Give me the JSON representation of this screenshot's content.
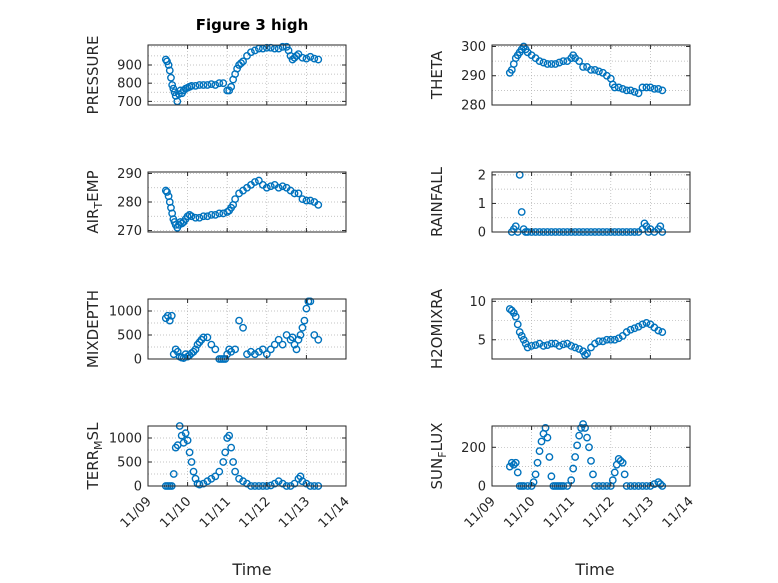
{
  "figure": {
    "title": "Figure 3 high"
  },
  "colors": {
    "series": "#0072BD",
    "axis": "#262626"
  },
  "chart_data": [
    {
      "type": "scatter",
      "ylabel": "PRESSURE",
      "ylabel_sub": "",
      "ylabel_tail": "",
      "title": "Figure 3 high",
      "xlim": [
        0,
        5
      ],
      "ylim": [
        680,
        1010
      ],
      "yticks": [
        700,
        800,
        900
      ],
      "grid": true,
      "x": [
        0.45,
        0.48,
        0.52,
        0.55,
        0.58,
        0.61,
        0.64,
        0.67,
        0.7,
        0.74,
        0.78,
        0.82,
        0.86,
        0.9,
        0.95,
        1.0,
        1.05,
        1.1,
        1.2,
        1.3,
        1.4,
        1.5,
        1.6,
        1.7,
        1.8,
        1.9,
        2.0,
        2.05,
        2.1,
        2.15,
        2.2,
        2.25,
        2.3,
        2.35,
        2.4,
        2.5,
        2.6,
        2.7,
        2.8,
        2.9,
        3.0,
        3.1,
        3.2,
        3.3,
        3.4,
        3.5,
        3.55,
        3.6,
        3.65,
        3.7,
        3.75,
        3.8,
        3.9,
        4.0,
        4.1,
        4.2,
        4.3
      ],
      "y": [
        930,
        920,
        900,
        870,
        830,
        790,
        770,
        750,
        730,
        700,
        740,
        760,
        745,
        760,
        770,
        775,
        780,
        785,
        785,
        790,
        790,
        790,
        795,
        790,
        800,
        800,
        760,
        760,
        780,
        820,
        850,
        880,
        900,
        910,
        920,
        950,
        970,
        980,
        990,
        990,
        995,
        995,
        990,
        990,
        1000,
        1000,
        980,
        950,
        930,
        940,
        950,
        960,
        940,
        935,
        945,
        935,
        930
      ]
    },
    {
      "type": "scatter",
      "ylabel": "THETA",
      "ylabel_sub": "",
      "ylabel_tail": "",
      "xlim": [
        0,
        5
      ],
      "ylim": [
        280,
        300.5
      ],
      "yticks": [
        280,
        290,
        300
      ],
      "grid": true,
      "x": [
        0.45,
        0.5,
        0.55,
        0.6,
        0.65,
        0.7,
        0.75,
        0.8,
        0.85,
        0.9,
        1.0,
        1.1,
        1.2,
        1.3,
        1.4,
        1.5,
        1.6,
        1.7,
        1.8,
        1.9,
        2.0,
        2.05,
        2.1,
        2.2,
        2.3,
        2.4,
        2.5,
        2.6,
        2.7,
        2.8,
        2.9,
        3.0,
        3.05,
        3.1,
        3.2,
        3.3,
        3.4,
        3.5,
        3.6,
        3.7,
        3.8,
        3.9,
        4.0,
        4.1,
        4.2,
        4.3
      ],
      "y": [
        291,
        292,
        294,
        296,
        297,
        298,
        299,
        300,
        299,
        298,
        297,
        296,
        295,
        294.5,
        294,
        294,
        294,
        294.5,
        295,
        295,
        296,
        297,
        296,
        295,
        293,
        293,
        292,
        292,
        291.5,
        291,
        290,
        289,
        287,
        286,
        286,
        285.5,
        285,
        285,
        284.5,
        284,
        286,
        286,
        286,
        285.5,
        285.5,
        285
      ]
    },
    {
      "type": "scatter",
      "ylabel": "AIR",
      "ylabel_sub": "T",
      "ylabel_tail": "EMP",
      "xlim": [
        0,
        5
      ],
      "ylim": [
        269.5,
        290.5
      ],
      "yticks": [
        270,
        280,
        290
      ],
      "grid": true,
      "x": [
        0.45,
        0.48,
        0.52,
        0.55,
        0.58,
        0.61,
        0.64,
        0.67,
        0.7,
        0.74,
        0.78,
        0.82,
        0.86,
        0.9,
        0.95,
        1.0,
        1.05,
        1.1,
        1.2,
        1.3,
        1.4,
        1.5,
        1.6,
        1.7,
        1.8,
        1.9,
        2.0,
        2.05,
        2.1,
        2.15,
        2.2,
        2.3,
        2.4,
        2.5,
        2.6,
        2.7,
        2.8,
        2.9,
        3.0,
        3.1,
        3.2,
        3.3,
        3.4,
        3.5,
        3.6,
        3.7,
        3.8,
        3.9,
        4.0,
        4.1,
        4.2,
        4.3
      ],
      "y": [
        284,
        283.5,
        282,
        280,
        278,
        276,
        274,
        273,
        272,
        271,
        272,
        273,
        272.5,
        273,
        274,
        275,
        275.5,
        275,
        274.5,
        274.5,
        275,
        275,
        275.5,
        275.5,
        276,
        276,
        276.5,
        277,
        278,
        279,
        281,
        283,
        284,
        285,
        286,
        287,
        287.5,
        286,
        285,
        285.5,
        286,
        285,
        285.5,
        285,
        284,
        283,
        283,
        281,
        280.5,
        280.5,
        280,
        279
      ]
    },
    {
      "type": "scatter",
      "ylabel": "RAINFALL",
      "ylabel_sub": "",
      "ylabel_tail": "",
      "xlim": [
        0,
        5
      ],
      "ylim": [
        0,
        2.1
      ],
      "yticks": [
        0,
        1,
        2
      ],
      "grid": true,
      "x": [
        0.5,
        0.55,
        0.6,
        0.65,
        0.7,
        0.75,
        0.8,
        0.85,
        0.9,
        1.0,
        1.1,
        1.2,
        1.3,
        1.4,
        1.5,
        1.6,
        1.7,
        1.8,
        1.9,
        2.0,
        2.1,
        2.2,
        2.3,
        2.4,
        2.5,
        2.6,
        2.7,
        2.8,
        2.9,
        3.0,
        3.1,
        3.2,
        3.3,
        3.4,
        3.5,
        3.6,
        3.7,
        3.8,
        3.85,
        3.9,
        3.95,
        4.0,
        4.1,
        4.2,
        4.25,
        4.3
      ],
      "y": [
        0,
        0.1,
        0.2,
        0,
        2.0,
        0.7,
        0.1,
        0,
        0,
        0,
        0,
        0,
        0,
        0,
        0,
        0,
        0,
        0,
        0,
        0,
        0,
        0,
        0,
        0,
        0,
        0,
        0,
        0,
        0,
        0,
        0,
        0,
        0,
        0,
        0,
        0,
        0,
        0.1,
        0.3,
        0.2,
        0,
        0.1,
        0,
        0.1,
        0.2,
        0
      ]
    },
    {
      "type": "scatter",
      "ylabel": "MIXDEPTH",
      "ylabel_sub": "",
      "ylabel_tail": "",
      "xlim": [
        0,
        5
      ],
      "ylim": [
        0,
        1250
      ],
      "yticks": [
        0,
        500,
        1000
      ],
      "grid": true,
      "x": [
        0.45,
        0.5,
        0.55,
        0.6,
        0.65,
        0.7,
        0.75,
        0.8,
        0.85,
        0.9,
        0.95,
        1.0,
        1.05,
        1.1,
        1.15,
        1.2,
        1.25,
        1.3,
        1.35,
        1.4,
        1.5,
        1.6,
        1.7,
        1.8,
        1.85,
        1.9,
        1.95,
        2.0,
        2.05,
        2.1,
        2.2,
        2.3,
        2.4,
        2.5,
        2.6,
        2.7,
        2.8,
        2.9,
        3.0,
        3.1,
        3.2,
        3.3,
        3.4,
        3.5,
        3.6,
        3.65,
        3.7,
        3.75,
        3.8,
        3.85,
        3.9,
        3.95,
        4.0,
        4.05,
        4.1,
        4.2,
        4.3
      ],
      "y": [
        850,
        900,
        800,
        900,
        100,
        200,
        150,
        50,
        30,
        20,
        100,
        50,
        80,
        120,
        150,
        200,
        300,
        350,
        400,
        450,
        450,
        300,
        200,
        0,
        0,
        0,
        0,
        100,
        200,
        150,
        200,
        800,
        650,
        100,
        150,
        100,
        150,
        200,
        100,
        200,
        300,
        400,
        300,
        500,
        400,
        450,
        300,
        200,
        400,
        500,
        650,
        800,
        1050,
        1200,
        1200,
        500,
        400
      ]
    },
    {
      "type": "scatter",
      "ylabel": "H2OMIXRA",
      "ylabel_sub": "",
      "ylabel_tail": "",
      "xlim": [
        0,
        5
      ],
      "ylim": [
        2.5,
        10.3
      ],
      "yticks": [
        5,
        10
      ],
      "grid": true,
      "x": [
        0.45,
        0.5,
        0.55,
        0.6,
        0.65,
        0.7,
        0.75,
        0.8,
        0.85,
        0.9,
        1.0,
        1.1,
        1.2,
        1.3,
        1.4,
        1.5,
        1.6,
        1.7,
        1.8,
        1.9,
        2.0,
        2.1,
        2.2,
        2.3,
        2.35,
        2.4,
        2.5,
        2.6,
        2.7,
        2.8,
        2.9,
        3.0,
        3.1,
        3.2,
        3.3,
        3.4,
        3.5,
        3.6,
        3.7,
        3.8,
        3.9,
        4.0,
        4.1,
        4.2,
        4.3
      ],
      "y": [
        9,
        8.8,
        8.5,
        8,
        7,
        6,
        5.5,
        5,
        4.5,
        4,
        4.2,
        4.3,
        4.5,
        4.2,
        4.3,
        4.5,
        4.5,
        4.2,
        4.4,
        4.5,
        4.2,
        4.0,
        3.8,
        3.5,
        3,
        3.2,
        4,
        4.5,
        4.8,
        4.8,
        5,
        5,
        5,
        5.2,
        5.5,
        6,
        6.3,
        6.5,
        6.7,
        7,
        7.2,
        7,
        6.6,
        6.2,
        6
      ]
    },
    {
      "type": "scatter",
      "ylabel": "TERR",
      "ylabel_sub": "M",
      "ylabel_tail": "SL",
      "xlim": [
        0,
        5
      ],
      "ylim": [
        0,
        1250
      ],
      "yticks": [
        0,
        500,
        1000
      ],
      "grid": true,
      "x": [
        0.45,
        0.5,
        0.55,
        0.6,
        0.65,
        0.7,
        0.75,
        0.8,
        0.85,
        0.9,
        0.95,
        1.0,
        1.05,
        1.1,
        1.15,
        1.2,
        1.25,
        1.3,
        1.4,
        1.5,
        1.6,
        1.7,
        1.8,
        1.9,
        1.95,
        2.0,
        2.05,
        2.1,
        2.15,
        2.2,
        2.3,
        2.4,
        2.5,
        2.6,
        2.7,
        2.8,
        2.9,
        3.0,
        3.1,
        3.2,
        3.3,
        3.4,
        3.5,
        3.6,
        3.7,
        3.8,
        3.85,
        3.9,
        4.0,
        4.1,
        4.2,
        4.3
      ],
      "y": [
        0,
        0,
        0,
        0,
        250,
        800,
        850,
        1250,
        1050,
        900,
        1100,
        950,
        700,
        500,
        300,
        150,
        50,
        30,
        50,
        100,
        150,
        200,
        300,
        500,
        700,
        1000,
        1050,
        800,
        500,
        300,
        150,
        100,
        50,
        0,
        0,
        0,
        0,
        0,
        10,
        50,
        100,
        50,
        0,
        0,
        50,
        150,
        200,
        100,
        50,
        0,
        0,
        0
      ]
    },
    {
      "type": "scatter",
      "ylabel": "SUN",
      "ylabel_sub": "F",
      "ylabel_tail": "LUX",
      "xlim": [
        0,
        5
      ],
      "ylim": [
        0,
        310
      ],
      "yticks": [
        0,
        200
      ],
      "grid": true,
      "x": [
        0.45,
        0.5,
        0.55,
        0.6,
        0.65,
        0.7,
        0.75,
        0.8,
        0.9,
        1.0,
        1.05,
        1.1,
        1.15,
        1.2,
        1.25,
        1.3,
        1.35,
        1.4,
        1.45,
        1.5,
        1.55,
        1.6,
        1.65,
        1.7,
        1.75,
        1.8,
        1.9,
        2.0,
        2.05,
        2.1,
        2.15,
        2.2,
        2.25,
        2.3,
        2.35,
        2.4,
        2.45,
        2.5,
        2.55,
        2.6,
        2.7,
        2.8,
        2.9,
        3.0,
        3.05,
        3.1,
        3.15,
        3.2,
        3.25,
        3.3,
        3.35,
        3.4,
        3.5,
        3.6,
        3.7,
        3.8,
        3.9,
        4.0,
        4.1,
        4.2,
        4.25,
        4.3
      ],
      "y": [
        100,
        120,
        110,
        120,
        70,
        0,
        0,
        0,
        0,
        0,
        20,
        60,
        120,
        180,
        230,
        270,
        300,
        250,
        150,
        50,
        0,
        0,
        0,
        0,
        0,
        0,
        0,
        30,
        90,
        150,
        210,
        260,
        300,
        320,
        300,
        250,
        200,
        130,
        60,
        0,
        0,
        0,
        0,
        0,
        30,
        70,
        110,
        140,
        130,
        120,
        60,
        0,
        0,
        0,
        0,
        0,
        0,
        0,
        10,
        20,
        10,
        0
      ]
    }
  ],
  "xaxis": {
    "label": "Time",
    "ticks": [
      0,
      1,
      2,
      3,
      4,
      5
    ],
    "tick_labels": [
      "11/09",
      "11/10",
      "11/11",
      "11/12",
      "11/13",
      "11/14"
    ]
  }
}
